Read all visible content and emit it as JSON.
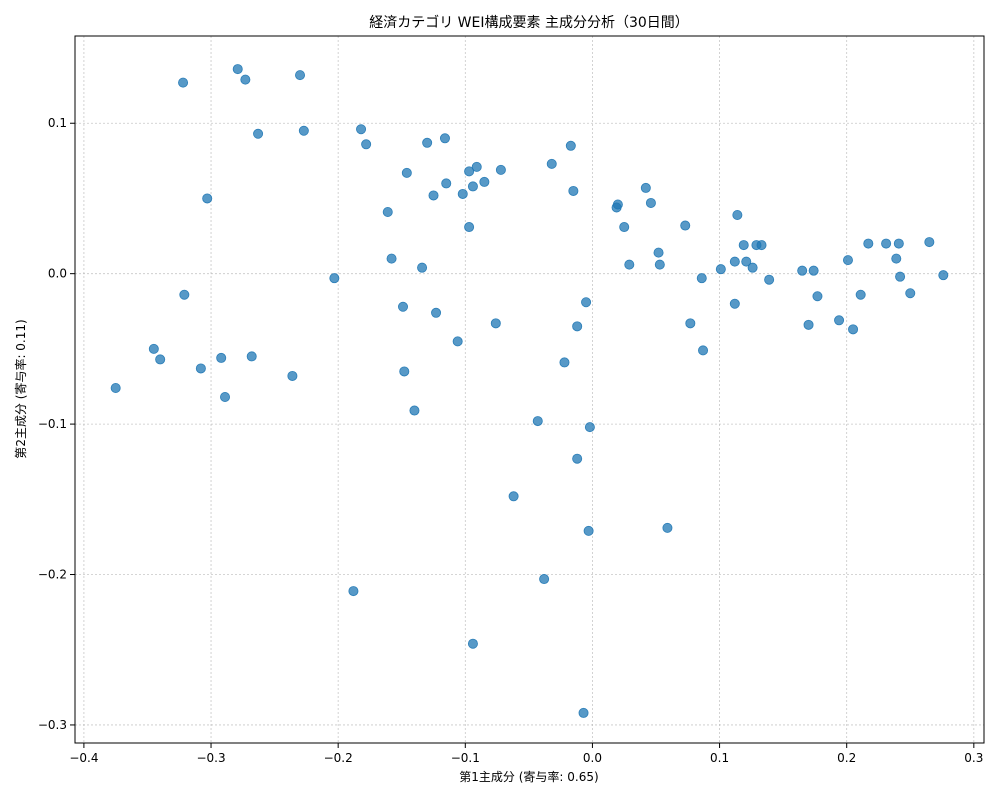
{
  "chart_data": {
    "type": "scatter",
    "title": "経済カテゴリ WEI構成要素 主成分分析（30日間）",
    "xlabel": "第1主成分 (寄与率: 0.65)",
    "ylabel": "第2主成分 (寄与率: 0.11)",
    "xlim": [
      -0.407,
      0.308
    ],
    "ylim": [
      -0.312,
      0.158
    ],
    "grid": true,
    "color": "#1f77b4",
    "xticks": [
      -0.4,
      -0.3,
      -0.2,
      -0.1,
      0.0,
      0.1,
      0.2,
      0.3
    ],
    "xtick_labels": [
      "−0.4",
      "−0.3",
      "−0.2",
      "−0.1",
      "0.0",
      "0.1",
      "0.2",
      "0.3"
    ],
    "yticks": [
      -0.3,
      -0.2,
      -0.1,
      0.0,
      0.1
    ],
    "ytick_labels": [
      "−0.3",
      "−0.2",
      "−0.1",
      "0.0",
      "0.1"
    ],
    "points": [
      {
        "x": -0.279,
        "y": 0.136
      },
      {
        "x": -0.273,
        "y": 0.129
      },
      {
        "x": -0.23,
        "y": 0.132
      },
      {
        "x": -0.322,
        "y": 0.127
      },
      {
        "x": -0.263,
        "y": 0.093
      },
      {
        "x": -0.227,
        "y": 0.095
      },
      {
        "x": -0.182,
        "y": 0.096
      },
      {
        "x": -0.178,
        "y": 0.086
      },
      {
        "x": -0.13,
        "y": 0.087
      },
      {
        "x": -0.116,
        "y": 0.09
      },
      {
        "x": -0.303,
        "y": 0.05
      },
      {
        "x": -0.146,
        "y": 0.067
      },
      {
        "x": -0.115,
        "y": 0.06
      },
      {
        "x": -0.125,
        "y": 0.052
      },
      {
        "x": -0.161,
        "y": 0.041
      },
      {
        "x": -0.097,
        "y": 0.068
      },
      {
        "x": -0.091,
        "y": 0.071
      },
      {
        "x": -0.072,
        "y": 0.069
      },
      {
        "x": -0.085,
        "y": 0.061
      },
      {
        "x": -0.094,
        "y": 0.058
      },
      {
        "x": -0.102,
        "y": 0.053
      },
      {
        "x": -0.097,
        "y": 0.031
      },
      {
        "x": -0.032,
        "y": 0.073
      },
      {
        "x": -0.017,
        "y": 0.085
      },
      {
        "x": -0.015,
        "y": 0.055
      },
      {
        "x": 0.042,
        "y": 0.057
      },
      {
        "x": 0.046,
        "y": 0.047
      },
      {
        "x": 0.02,
        "y": 0.046
      },
      {
        "x": 0.019,
        "y": 0.044
      },
      {
        "x": 0.025,
        "y": 0.031
      },
      {
        "x": -0.158,
        "y": 0.01
      },
      {
        "x": -0.134,
        "y": 0.004
      },
      {
        "x": -0.203,
        "y": -0.003
      },
      {
        "x": -0.321,
        "y": -0.014
      },
      {
        "x": -0.149,
        "y": -0.022
      },
      {
        "x": -0.123,
        "y": -0.026
      },
      {
        "x": -0.076,
        "y": -0.033
      },
      {
        "x": -0.106,
        "y": -0.045
      },
      {
        "x": -0.005,
        "y": -0.019
      },
      {
        "x": -0.012,
        "y": -0.035
      },
      {
        "x": 0.029,
        "y": 0.006
      },
      {
        "x": 0.052,
        "y": 0.014
      },
      {
        "x": 0.053,
        "y": 0.006
      },
      {
        "x": 0.073,
        "y": 0.032
      },
      {
        "x": 0.114,
        "y": 0.039
      },
      {
        "x": 0.086,
        "y": -0.003
      },
      {
        "x": 0.101,
        "y": 0.003
      },
      {
        "x": 0.112,
        "y": 0.008
      },
      {
        "x": 0.119,
        "y": 0.019
      },
      {
        "x": 0.121,
        "y": 0.008
      },
      {
        "x": 0.126,
        "y": 0.004
      },
      {
        "x": 0.129,
        "y": 0.019
      },
      {
        "x": 0.133,
        "y": 0.019
      },
      {
        "x": 0.139,
        "y": -0.004
      },
      {
        "x": 0.077,
        "y": -0.033
      },
      {
        "x": 0.087,
        "y": -0.051
      },
      {
        "x": 0.112,
        "y": -0.02
      },
      {
        "x": 0.165,
        "y": 0.002
      },
      {
        "x": 0.174,
        "y": 0.002
      },
      {
        "x": 0.177,
        "y": -0.015
      },
      {
        "x": 0.17,
        "y": -0.034
      },
      {
        "x": 0.194,
        "y": -0.031
      },
      {
        "x": 0.205,
        "y": -0.037
      },
      {
        "x": 0.201,
        "y": 0.009
      },
      {
        "x": 0.211,
        "y": -0.014
      },
      {
        "x": 0.217,
        "y": 0.02
      },
      {
        "x": 0.231,
        "y": 0.02
      },
      {
        "x": 0.239,
        "y": 0.01
      },
      {
        "x": 0.241,
        "y": 0.02
      },
      {
        "x": 0.242,
        "y": -0.002
      },
      {
        "x": 0.25,
        "y": -0.013
      },
      {
        "x": 0.265,
        "y": 0.021
      },
      {
        "x": 0.276,
        "y": -0.001
      },
      {
        "x": -0.345,
        "y": -0.05
      },
      {
        "x": -0.34,
        "y": -0.057
      },
      {
        "x": -0.308,
        "y": -0.063
      },
      {
        "x": -0.292,
        "y": -0.056
      },
      {
        "x": -0.268,
        "y": -0.055
      },
      {
        "x": -0.236,
        "y": -0.068
      },
      {
        "x": -0.375,
        "y": -0.076
      },
      {
        "x": -0.289,
        "y": -0.082
      },
      {
        "x": -0.148,
        "y": -0.065
      },
      {
        "x": -0.14,
        "y": -0.091
      },
      {
        "x": -0.022,
        "y": -0.059
      },
      {
        "x": -0.043,
        "y": -0.098
      },
      {
        "x": -0.002,
        "y": -0.102
      },
      {
        "x": -0.012,
        "y": -0.123
      },
      {
        "x": -0.062,
        "y": -0.148
      },
      {
        "x": -0.003,
        "y": -0.171
      },
      {
        "x": 0.059,
        "y": -0.169
      },
      {
        "x": -0.038,
        "y": -0.203
      },
      {
        "x": -0.188,
        "y": -0.211
      },
      {
        "x": -0.094,
        "y": -0.246
      },
      {
        "x": -0.007,
        "y": -0.292
      }
    ]
  }
}
